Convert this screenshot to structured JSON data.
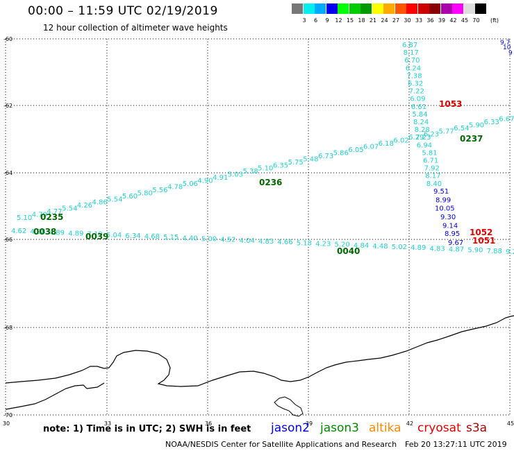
{
  "header": {
    "title": "00:00 – 11:59 UTC 02/19/2019",
    "subtitle": "12 hour collection of altimeter wave heights"
  },
  "legend": {
    "colors": [
      "#777777",
      "#00eeee",
      "#00aaff",
      "#0000ee",
      "#00ff00",
      "#00cc00",
      "#009900",
      "#ffff00",
      "#ffaa00",
      "#ff5500",
      "#ff0000",
      "#cc0000",
      "#880000",
      "#aa00aa",
      "#ff00ff",
      "#dddddd",
      "#000000"
    ],
    "labels": [
      "3",
      "6",
      "9",
      "12",
      "15",
      "18",
      "21",
      "24",
      "27",
      "30",
      "33",
      "36",
      "39",
      "42",
      "45",
      "70"
    ],
    "unit": "(ft)"
  },
  "axes": {
    "lat_labels": [
      "-60",
      "-62",
      "-64",
      "-66",
      "-68",
      "-70"
    ],
    "lon_labels": [
      "30",
      "33",
      "36",
      "39",
      "42",
      "45"
    ]
  },
  "times": [
    {
      "label": "0235",
      "color": "#006600"
    },
    {
      "label": "0038",
      "color": "#006600"
    },
    {
      "label": "0039",
      "color": "#006600"
    },
    {
      "label": "0236",
      "color": "#006600"
    },
    {
      "label": "0040",
      "color": "#006600"
    },
    {
      "label": "0237",
      "color": "#006600"
    },
    {
      "label": "1053",
      "color": "#dd0000"
    },
    {
      "label": "1052",
      "color": "#dd0000"
    },
    {
      "label": "1051",
      "color": "#dd0000"
    }
  ],
  "tracks": {
    "upper_jason3": [
      "5.10",
      "4.79",
      "4.77",
      "5.54",
      "4.26",
      "4.86",
      "5.54",
      "5.60",
      "5.80",
      "5.56",
      "4.78",
      "5.06",
      "4.90",
      "4.91",
      "5.03",
      "5.38",
      "5.10",
      "6.35",
      "5.75",
      "5.48",
      "6.73",
      "5.86",
      "6.05",
      "6.07",
      "6.18",
      "6.02",
      "6.29",
      "6.23",
      "5.77",
      "6.54",
      "5.90",
      "6.33",
      "6.67",
      "6.1"
    ],
    "lower_jason3": [
      "4.62",
      "4.98",
      "4.89",
      "4.89",
      "7.19",
      "5.04",
      "6.34",
      "4.68",
      "5.15",
      "4.40",
      "5.00",
      "4.52",
      "4.04",
      "4.83",
      "4.66",
      "5.18",
      "4.23",
      "5.20",
      "4.84",
      "4.48",
      "5.02",
      "4.89",
      "4.83",
      "4.87",
      "5.90",
      "7.88",
      "9.2"
    ],
    "vertical_jason3": [
      "6.87",
      "8.17",
      "6.70",
      "6.24",
      "7.38",
      "6.32",
      "7.22",
      "6.09",
      "6.61",
      "5.84",
      "8.24",
      "8.28",
      "7.23",
      "6.94",
      "5.81",
      "6.71",
      "7.92",
      "8.17",
      "8.40"
    ],
    "vertical_jason2": [
      "9.51",
      "8.99",
      "10.05",
      "9.30",
      "9.14",
      "9.67"
    ],
    "vertical_mixed": [
      "8.95"
    ],
    "top_right_jason2": [
      "9.7",
      "10",
      "9"
    ]
  },
  "note": {
    "text": "note: 1) Time is in UTC; 2) SWH is in feet"
  },
  "satellites": [
    {
      "name": "jason2",
      "color": "#0000dd"
    },
    {
      "name": "jason3",
      "color": "#008800"
    },
    {
      "name": "altika",
      "color": "#ff8800"
    },
    {
      "name": "cryosat",
      "color": "#dd0000"
    },
    {
      "name": "s3a",
      "color": "#aa0000"
    }
  ],
  "footer": {
    "org": "NOAA/NESDIS Center for Satellite Applications and Research",
    "timestamp": "Feb 20 13:27:11 UTC 2019"
  }
}
